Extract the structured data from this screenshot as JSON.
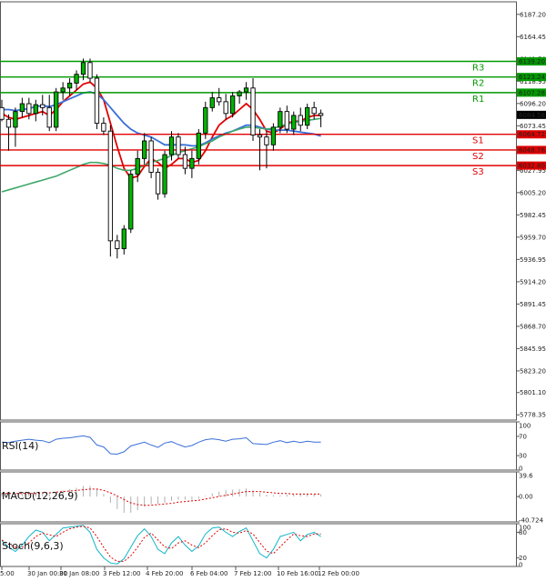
{
  "chart_data": {
    "type": "candlestick",
    "x_tick_labels": [
      "5:00",
      "30 Jan 00:00",
      "31 Jan 08:00",
      "3 Feb 12:00",
      "4 Feb 20:00",
      "6 Feb 04:00",
      "7 Feb 12:00",
      "10 Feb 16:00",
      "12 Feb 00:00"
    ],
    "y_tick_labels": [
      6187.2,
      6164.45,
      6141.7,
      6118.95,
      6096.2,
      6073.45,
      6050.7,
      6027.95,
      6005.2,
      5982.45,
      5959.7,
      5936.95,
      5914.2,
      5891.45,
      5868.7,
      5845.95,
      5823.2,
      5801.1,
      5778.35
    ],
    "ylim": [
      5773,
      6200
    ],
    "current_price": {
      "label": "6084.58",
      "value": 6084.58,
      "color": "#000000"
    },
    "levels": [
      {
        "name": "R3",
        "value": 6139.2,
        "label": "6139.20",
        "color": "#009a00"
      },
      {
        "name": "R2",
        "value": 6123.24,
        "label": "6123.24",
        "color": "#009a00"
      },
      {
        "name": "R1",
        "value": 6107.28,
        "label": "6107.28",
        "color": "#009a00"
      },
      {
        "name": "S1",
        "value": 6064.72,
        "label": "6064.72",
        "color": "#e00000"
      },
      {
        "name": "S2",
        "value": 6048.76,
        "label": "6048.76",
        "color": "#e00000"
      },
      {
        "name": "S3",
        "value": 6032.8,
        "label": "6032.80",
        "color": "#e00000"
      }
    ],
    "candles": [
      {
        "o": 6092,
        "h": 6100,
        "l": 6078,
        "c": 6080
      },
      {
        "o": 6080,
        "h": 6085,
        "l": 6048,
        "c": 6072
      },
      {
        "o": 6072,
        "h": 6092,
        "l": 6052,
        "c": 6088
      },
      {
        "o": 6088,
        "h": 6102,
        "l": 6082,
        "c": 6096
      },
      {
        "o": 6096,
        "h": 6102,
        "l": 6080,
        "c": 6086
      },
      {
        "o": 6086,
        "h": 6100,
        "l": 6078,
        "c": 6095
      },
      {
        "o": 6095,
        "h": 6105,
        "l": 6084,
        "c": 6092
      },
      {
        "o": 6092,
        "h": 6105,
        "l": 6068,
        "c": 6072
      },
      {
        "o": 6072,
        "h": 6112,
        "l": 6068,
        "c": 6108
      },
      {
        "o": 6108,
        "h": 6118,
        "l": 6100,
        "c": 6112
      },
      {
        "o": 6112,
        "h": 6122,
        "l": 6104,
        "c": 6117
      },
      {
        "o": 6117,
        "h": 6130,
        "l": 6110,
        "c": 6126
      },
      {
        "o": 6126,
        "h": 6142,
        "l": 6120,
        "c": 6138
      },
      {
        "o": 6138,
        "h": 6142,
        "l": 6118,
        "c": 6122
      },
      {
        "o": 6122,
        "h": 6126,
        "l": 6070,
        "c": 6076
      },
      {
        "o": 6076,
        "h": 6082,
        "l": 6064,
        "c": 6068
      },
      {
        "o": 6068,
        "h": 6074,
        "l": 5940,
        "c": 5956
      },
      {
        "o": 5956,
        "h": 5962,
        "l": 5938,
        "c": 5948
      },
      {
        "o": 5948,
        "h": 5972,
        "l": 5942,
        "c": 5968
      },
      {
        "o": 5968,
        "h": 6028,
        "l": 5964,
        "c": 6024
      },
      {
        "o": 6024,
        "h": 6048,
        "l": 6016,
        "c": 6040
      },
      {
        "o": 6040,
        "h": 6066,
        "l": 6034,
        "c": 6058
      },
      {
        "o": 6058,
        "h": 6062,
        "l": 6020,
        "c": 6026
      },
      {
        "o": 6026,
        "h": 6030,
        "l": 5998,
        "c": 6004
      },
      {
        "o": 6004,
        "h": 6048,
        "l": 6000,
        "c": 6044
      },
      {
        "o": 6044,
        "h": 6068,
        "l": 6038,
        "c": 6062
      },
      {
        "o": 6062,
        "h": 6066,
        "l": 6040,
        "c": 6044
      },
      {
        "o": 6044,
        "h": 6052,
        "l": 6024,
        "c": 6030
      },
      {
        "o": 6030,
        "h": 6048,
        "l": 6020,
        "c": 6040
      },
      {
        "o": 6040,
        "h": 6070,
        "l": 6034,
        "c": 6066
      },
      {
        "o": 6066,
        "h": 6098,
        "l": 6060,
        "c": 6092
      },
      {
        "o": 6092,
        "h": 6108,
        "l": 6088,
        "c": 6102
      },
      {
        "o": 6102,
        "h": 6112,
        "l": 6094,
        "c": 6098
      },
      {
        "o": 6098,
        "h": 6106,
        "l": 6080,
        "c": 6086
      },
      {
        "o": 6086,
        "h": 6108,
        "l": 6082,
        "c": 6104
      },
      {
        "o": 6104,
        "h": 6110,
        "l": 6096,
        "c": 6108
      },
      {
        "o": 6108,
        "h": 6118,
        "l": 6100,
        "c": 6112
      },
      {
        "o": 6112,
        "h": 6122,
        "l": 6058,
        "c": 6064
      },
      {
        "o": 6064,
        "h": 6070,
        "l": 6028,
        "c": 6062
      },
      {
        "o": 6062,
        "h": 6068,
        "l": 6030,
        "c": 6054
      },
      {
        "o": 6054,
        "h": 6076,
        "l": 6048,
        "c": 6072
      },
      {
        "o": 6072,
        "h": 6092,
        "l": 6066,
        "c": 6088
      },
      {
        "o": 6088,
        "h": 6094,
        "l": 6066,
        "c": 6070
      },
      {
        "o": 6070,
        "h": 6088,
        "l": 6064,
        "c": 6084
      },
      {
        "o": 6084,
        "h": 6092,
        "l": 6068,
        "c": 6074
      },
      {
        "o": 6074,
        "h": 6096,
        "l": 6070,
        "c": 6092
      },
      {
        "o": 6092,
        "h": 6098,
        "l": 6080,
        "c": 6086
      },
      {
        "o": 6086,
        "h": 6090,
        "l": 6072,
        "c": 6084
      }
    ],
    "ma_series": [
      {
        "color": "#e00000",
        "values": [
          6086,
          6082,
          6080,
          6082,
          6084,
          6086,
          6088,
          6084,
          6090,
          6098,
          6104,
          6110,
          6116,
          6118,
          6112,
          6100,
          6076,
          6052,
          6030,
          6020,
          6022,
          6032,
          6040,
          6036,
          6030,
          6034,
          6040,
          6040,
          6036,
          6038,
          6048,
          6062,
          6074,
          6080,
          6084,
          6090,
          6096,
          6090,
          6080,
          6068,
          6066,
          6070,
          6076,
          6078,
          6078,
          6082,
          6084,
          6084
        ]
      },
      {
        "color": "#3a6fd8",
        "values": [
          6090,
          6090,
          6089,
          6090,
          6091,
          6093,
          6094,
          6093,
          6095,
          6098,
          6101,
          6104,
          6107,
          6108,
          6106,
          6100,
          6092,
          6084,
          6076,
          6070,
          6066,
          6064,
          6062,
          6058,
          6054,
          6054,
          6054,
          6054,
          6053,
          6053,
          6056,
          6060,
          6063,
          6066,
          6068,
          6071,
          6074,
          6074,
          6072,
          6070,
          6069,
          6069,
          6069,
          6068,
          6067,
          6066,
          6065,
          6063
        ]
      },
      {
        "color": "#3fa86a",
        "values": [
          6006,
          6008,
          6010,
          6012,
          6014,
          6016,
          6018,
          6020,
          6022,
          6025,
          6028,
          6031,
          6034,
          6036,
          6036,
          6035,
          6033,
          6030,
          6028,
          6028,
          6030,
          6033,
          6036,
          6038,
          6040,
          6043,
          6046,
          6048,
          6050,
          6052,
          6055,
          6058,
          6062,
          6065,
          6068,
          6070,
          6072,
          6072,
          6071,
          6070,
          6071,
          6073,
          6075,
          6077,
          6078,
          6079,
          6080,
          6081
        ]
      }
    ],
    "indicators": [
      {
        "name": "rsi",
        "title": "RSI(14)",
        "ticks": [
          "100",
          "70",
          "30",
          "0"
        ],
        "ylim": [
          0,
          100
        ],
        "tick_values": [
          100,
          70,
          30,
          0
        ],
        "series": [
          {
            "color": "#3a6fd8",
            "style": "solid",
            "values": [
              58,
              57,
              60,
              62,
              64,
              62,
              61,
              57,
              64,
              66,
              67,
              69,
              71,
              68,
              52,
              48,
              34,
              33,
              38,
              50,
              54,
              58,
              52,
              47,
              56,
              59,
              53,
              48,
              51,
              58,
              63,
              65,
              63,
              60,
              64,
              65,
              67,
              55,
              54,
              53,
              58,
              61,
              57,
              60,
              57,
              60,
              58,
              58
            ]
          }
        ]
      },
      {
        "name": "macd",
        "title": "MACD(12,26,9)",
        "ticks": [
          "39.6",
          "0.00",
          "-40.724"
        ],
        "ylim": [
          -40.724,
          39.6
        ],
        "tick_values": [
          39.6,
          0,
          -40.724
        ],
        "histogram": [
          6,
          6,
          5,
          5,
          6,
          6,
          7,
          6,
          8,
          10,
          12,
          14,
          17,
          17,
          12,
          4,
          -10,
          -20,
          -26,
          -26,
          -22,
          -16,
          -12,
          -12,
          -10,
          -7,
          -5,
          -5,
          -5,
          -3,
          1,
          5,
          8,
          10,
          11,
          12,
          13,
          10,
          6,
          3,
          2,
          2,
          3,
          3,
          3,
          4,
          4,
          4
        ],
        "series": [
          {
            "color": "#e00000",
            "style": "dashed",
            "values": [
              5,
              5,
              5,
              5,
              5,
              5,
              6,
              6,
              7,
              8,
              9,
              10,
              11,
              12,
              12,
              10,
              6,
              1,
              -5,
              -10,
              -13,
              -14,
              -14,
              -13,
              -12,
              -11,
              -9,
              -8,
              -7,
              -6,
              -4,
              -2,
              0,
              2,
              4,
              6,
              8,
              8,
              8,
              7,
              6,
              5,
              5,
              4,
              4,
              4,
              4,
              4
            ]
          }
        ]
      },
      {
        "name": "stoch",
        "title": "Stoch(9,6,3)",
        "ticks": [
          "100",
          "80",
          "20",
          "0"
        ],
        "ylim": [
          0,
          100
        ],
        "tick_values": [
          100,
          80,
          20,
          0
        ],
        "series": [
          {
            "color": "#12b5c9",
            "style": "solid",
            "values": [
              60,
              45,
              35,
              50,
              70,
              85,
              80,
              60,
              75,
              90,
              92,
              94,
              96,
              80,
              40,
              20,
              8,
              6,
              18,
              45,
              72,
              88,
              70,
              40,
              30,
              55,
              70,
              50,
              35,
              48,
              76,
              90,
              92,
              80,
              70,
              82,
              90,
              60,
              30,
              20,
              40,
              70,
              75,
              80,
              60,
              75,
              80,
              70
            ]
          },
          {
            "color": "#e00000",
            "style": "dashed",
            "values": [
              62,
              52,
              45,
              45,
              55,
              70,
              78,
              74,
              70,
              80,
              88,
              92,
              94,
              90,
              70,
              45,
              22,
              12,
              12,
              25,
              45,
              68,
              78,
              62,
              46,
              42,
              55,
              60,
              50,
              44,
              55,
              72,
              86,
              88,
              80,
              78,
              84,
              76,
              56,
              36,
              30,
              46,
              62,
              76,
              72,
              70,
              76,
              76
            ]
          }
        ]
      }
    ]
  }
}
